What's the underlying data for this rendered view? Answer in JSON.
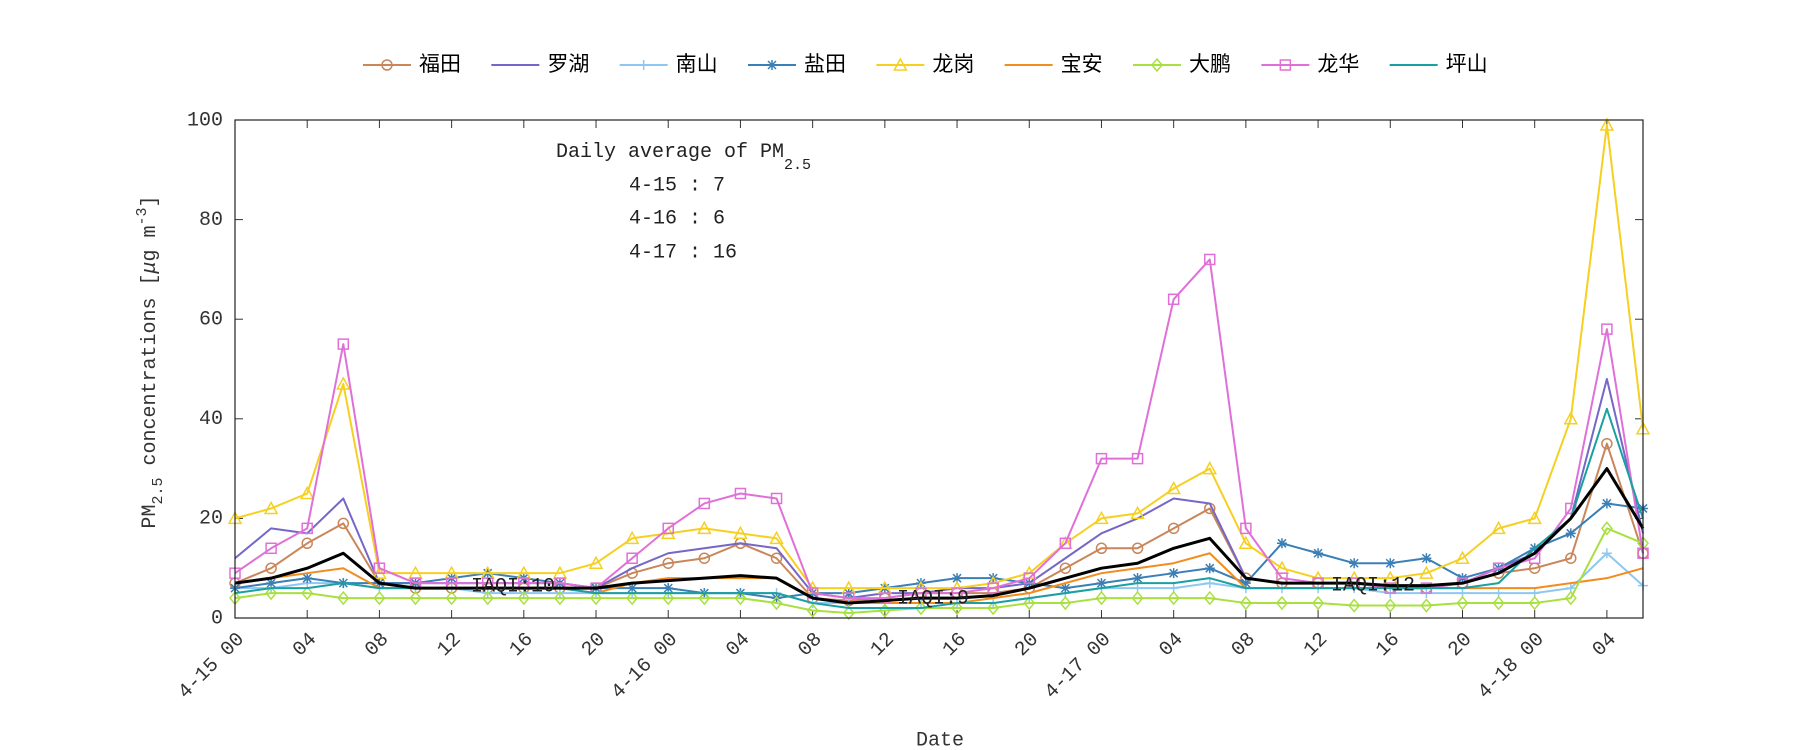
{
  "chart_data": {
    "type": "line",
    "xlabel": "Date",
    "ylabel": [
      "PM",
      "2.5",
      " concentrations [",
      "μ",
      "g m",
      "-3",
      "]"
    ],
    "xlim": [
      0,
      78
    ],
    "ylim": [
      0,
      100
    ],
    "yticks": [
      0,
      20,
      40,
      60,
      80,
      100
    ],
    "xticks": [
      {
        "value": 0,
        "label": "4-15 00"
      },
      {
        "value": 4,
        "label": "04"
      },
      {
        "value": 8,
        "label": "08"
      },
      {
        "value": 12,
        "label": "12"
      },
      {
        "value": 16,
        "label": "16"
      },
      {
        "value": 20,
        "label": "20"
      },
      {
        "value": 24,
        "label": "4-16 00"
      },
      {
        "value": 28,
        "label": "04"
      },
      {
        "value": 32,
        "label": "08"
      },
      {
        "value": 36,
        "label": "12"
      },
      {
        "value": 40,
        "label": "16"
      },
      {
        "value": 44,
        "label": "20"
      },
      {
        "value": 48,
        "label": "4-17 00"
      },
      {
        "value": 52,
        "label": "04"
      },
      {
        "value": 56,
        "label": "08"
      },
      {
        "value": 60,
        "label": "12"
      },
      {
        "value": 64,
        "label": "16"
      },
      {
        "value": 68,
        "label": "20"
      },
      {
        "value": 72,
        "label": "4-18 00"
      },
      {
        "value": 76,
        "label": "04"
      }
    ],
    "grid": false,
    "legend": "top",
    "annotations": {
      "avg_title": [
        "Daily average of PM",
        "2.5"
      ],
      "avg_lines": [
        "4-15 : 7",
        "4-16 : 6",
        "4-17 : 16"
      ],
      "iaqi": [
        "IAQI:10",
        "IAQI:9",
        "IAQI:12"
      ]
    },
    "x": [
      0,
      2,
      4,
      6,
      8,
      10,
      12,
      14,
      16,
      18,
      20,
      22,
      24,
      26,
      28,
      30,
      32,
      34,
      36,
      38,
      40,
      42,
      44,
      46,
      48,
      50,
      52,
      54,
      56,
      58,
      60,
      62,
      64,
      66,
      68,
      70,
      72,
      74,
      76,
      78
    ],
    "series": [
      {
        "name": "福田",
        "color": "#c8865a",
        "marker": "o",
        "values": [
          7,
          10,
          15,
          19,
          7,
          6,
          6,
          6,
          6,
          6,
          6,
          9,
          11,
          12,
          15,
          12,
          4,
          3.5,
          4,
          5,
          5,
          5,
          6,
          10,
          14,
          14,
          18,
          22,
          8,
          7,
          7,
          7,
          6,
          6,
          7,
          9,
          10,
          12,
          35,
          13
        ]
      },
      {
        "name": "罗湖",
        "color": "#7566c8",
        "marker": "none",
        "values": [
          12,
          18,
          17,
          24,
          7,
          7,
          7,
          7,
          7,
          7,
          6,
          10,
          13,
          14,
          15,
          14,
          5,
          4,
          5,
          5,
          6,
          6,
          7,
          12,
          17,
          20,
          24,
          23,
          8,
          7,
          7,
          7,
          6,
          6,
          7,
          10,
          13,
          20,
          48,
          17
        ]
      },
      {
        "name": "南山",
        "color": "#8ec8f2",
        "marker": "+",
        "values": [
          6,
          6,
          7,
          7,
          6,
          6,
          6,
          5,
          5,
          5,
          5,
          5,
          5,
          5,
          5,
          5,
          3,
          3,
          3,
          3,
          3,
          3,
          4,
          5,
          6,
          6,
          6,
          7,
          6,
          6,
          6,
          6,
          5,
          5,
          5,
          5,
          5,
          6,
          13,
          6.5
        ]
      },
      {
        "name": "盐田",
        "color": "#3a7fb5",
        "marker": "*",
        "values": [
          6,
          7,
          8,
          7,
          7,
          7,
          8,
          9,
          8,
          7,
          6,
          6,
          6,
          5,
          5,
          4,
          5,
          5,
          6,
          7,
          8,
          8,
          7,
          6,
          7,
          8,
          9,
          10,
          7,
          15,
          13,
          11,
          11,
          12,
          8,
          10,
          14,
          17,
          23,
          22
        ]
      },
      {
        "name": "龙岗",
        "color": "#f5d020",
        "marker": "^",
        "values": [
          20,
          22,
          25,
          47,
          9,
          9,
          9,
          9,
          9,
          9,
          11,
          16,
          17,
          18,
          17,
          16,
          6,
          6,
          6,
          6,
          6,
          7,
          9,
          15,
          20,
          21,
          26,
          30,
          15,
          10,
          8,
          8,
          8,
          9,
          12,
          18,
          20,
          40,
          99,
          38
        ]
      },
      {
        "name": "宝安",
        "color": "#f28c1c",
        "marker": "none",
        "values": [
          7,
          8,
          9,
          10,
          6,
          6,
          6,
          6,
          6,
          6,
          5,
          7,
          8,
          8,
          8,
          8,
          4,
          3,
          3,
          3,
          3,
          4,
          5,
          7,
          9,
          10,
          11,
          13,
          6,
          6,
          6,
          6,
          6,
          6,
          6,
          6,
          6,
          7,
          8,
          10
        ]
      },
      {
        "name": "大鹏",
        "color": "#a8e040",
        "marker": "d",
        "values": [
          4,
          5,
          5,
          4,
          4,
          4,
          4,
          4,
          4,
          4,
          4,
          4,
          4,
          4,
          4,
          3,
          1.5,
          1,
          1.5,
          2,
          2,
          2,
          3,
          3,
          4,
          4,
          4,
          4,
          3,
          3,
          3,
          2.5,
          2.5,
          2.5,
          3,
          3,
          3,
          4,
          18,
          15
        ]
      },
      {
        "name": "龙华",
        "color": "#e070d8",
        "marker": "s",
        "values": [
          9,
          14,
          18,
          55,
          10,
          7,
          7,
          7,
          7,
          7,
          6,
          12,
          18,
          23,
          25,
          24,
          5,
          4,
          4,
          5,
          5,
          6,
          8,
          15,
          32,
          32,
          64,
          72,
          18,
          8,
          7,
          7,
          6,
          6,
          7,
          10,
          12,
          22,
          58,
          13
        ]
      },
      {
        "name": "坪山",
        "color": "#1aa0a0",
        "marker": "none",
        "values": [
          5,
          6,
          6,
          7,
          6,
          6,
          6,
          6,
          6,
          6,
          5,
          5,
          5,
          5,
          5,
          5,
          3,
          2,
          2,
          2,
          3,
          3,
          4,
          5,
          6,
          7,
          7,
          8,
          6,
          6,
          6,
          6,
          6,
          6,
          6,
          7,
          14,
          20,
          42,
          20
        ]
      },
      {
        "color": "#000000",
        "marker": "none",
        "width": 3,
        "values": [
          7,
          8,
          10,
          13,
          7,
          6,
          6,
          6,
          6,
          6,
          6,
          7,
          7.5,
          8,
          8.5,
          8,
          4,
          3,
          3.5,
          4,
          4,
          4.5,
          6,
          8,
          10,
          11,
          14,
          16,
          8,
          7,
          7,
          7,
          6.5,
          6.5,
          7,
          9,
          13,
          20,
          30,
          18
        ]
      }
    ]
  }
}
